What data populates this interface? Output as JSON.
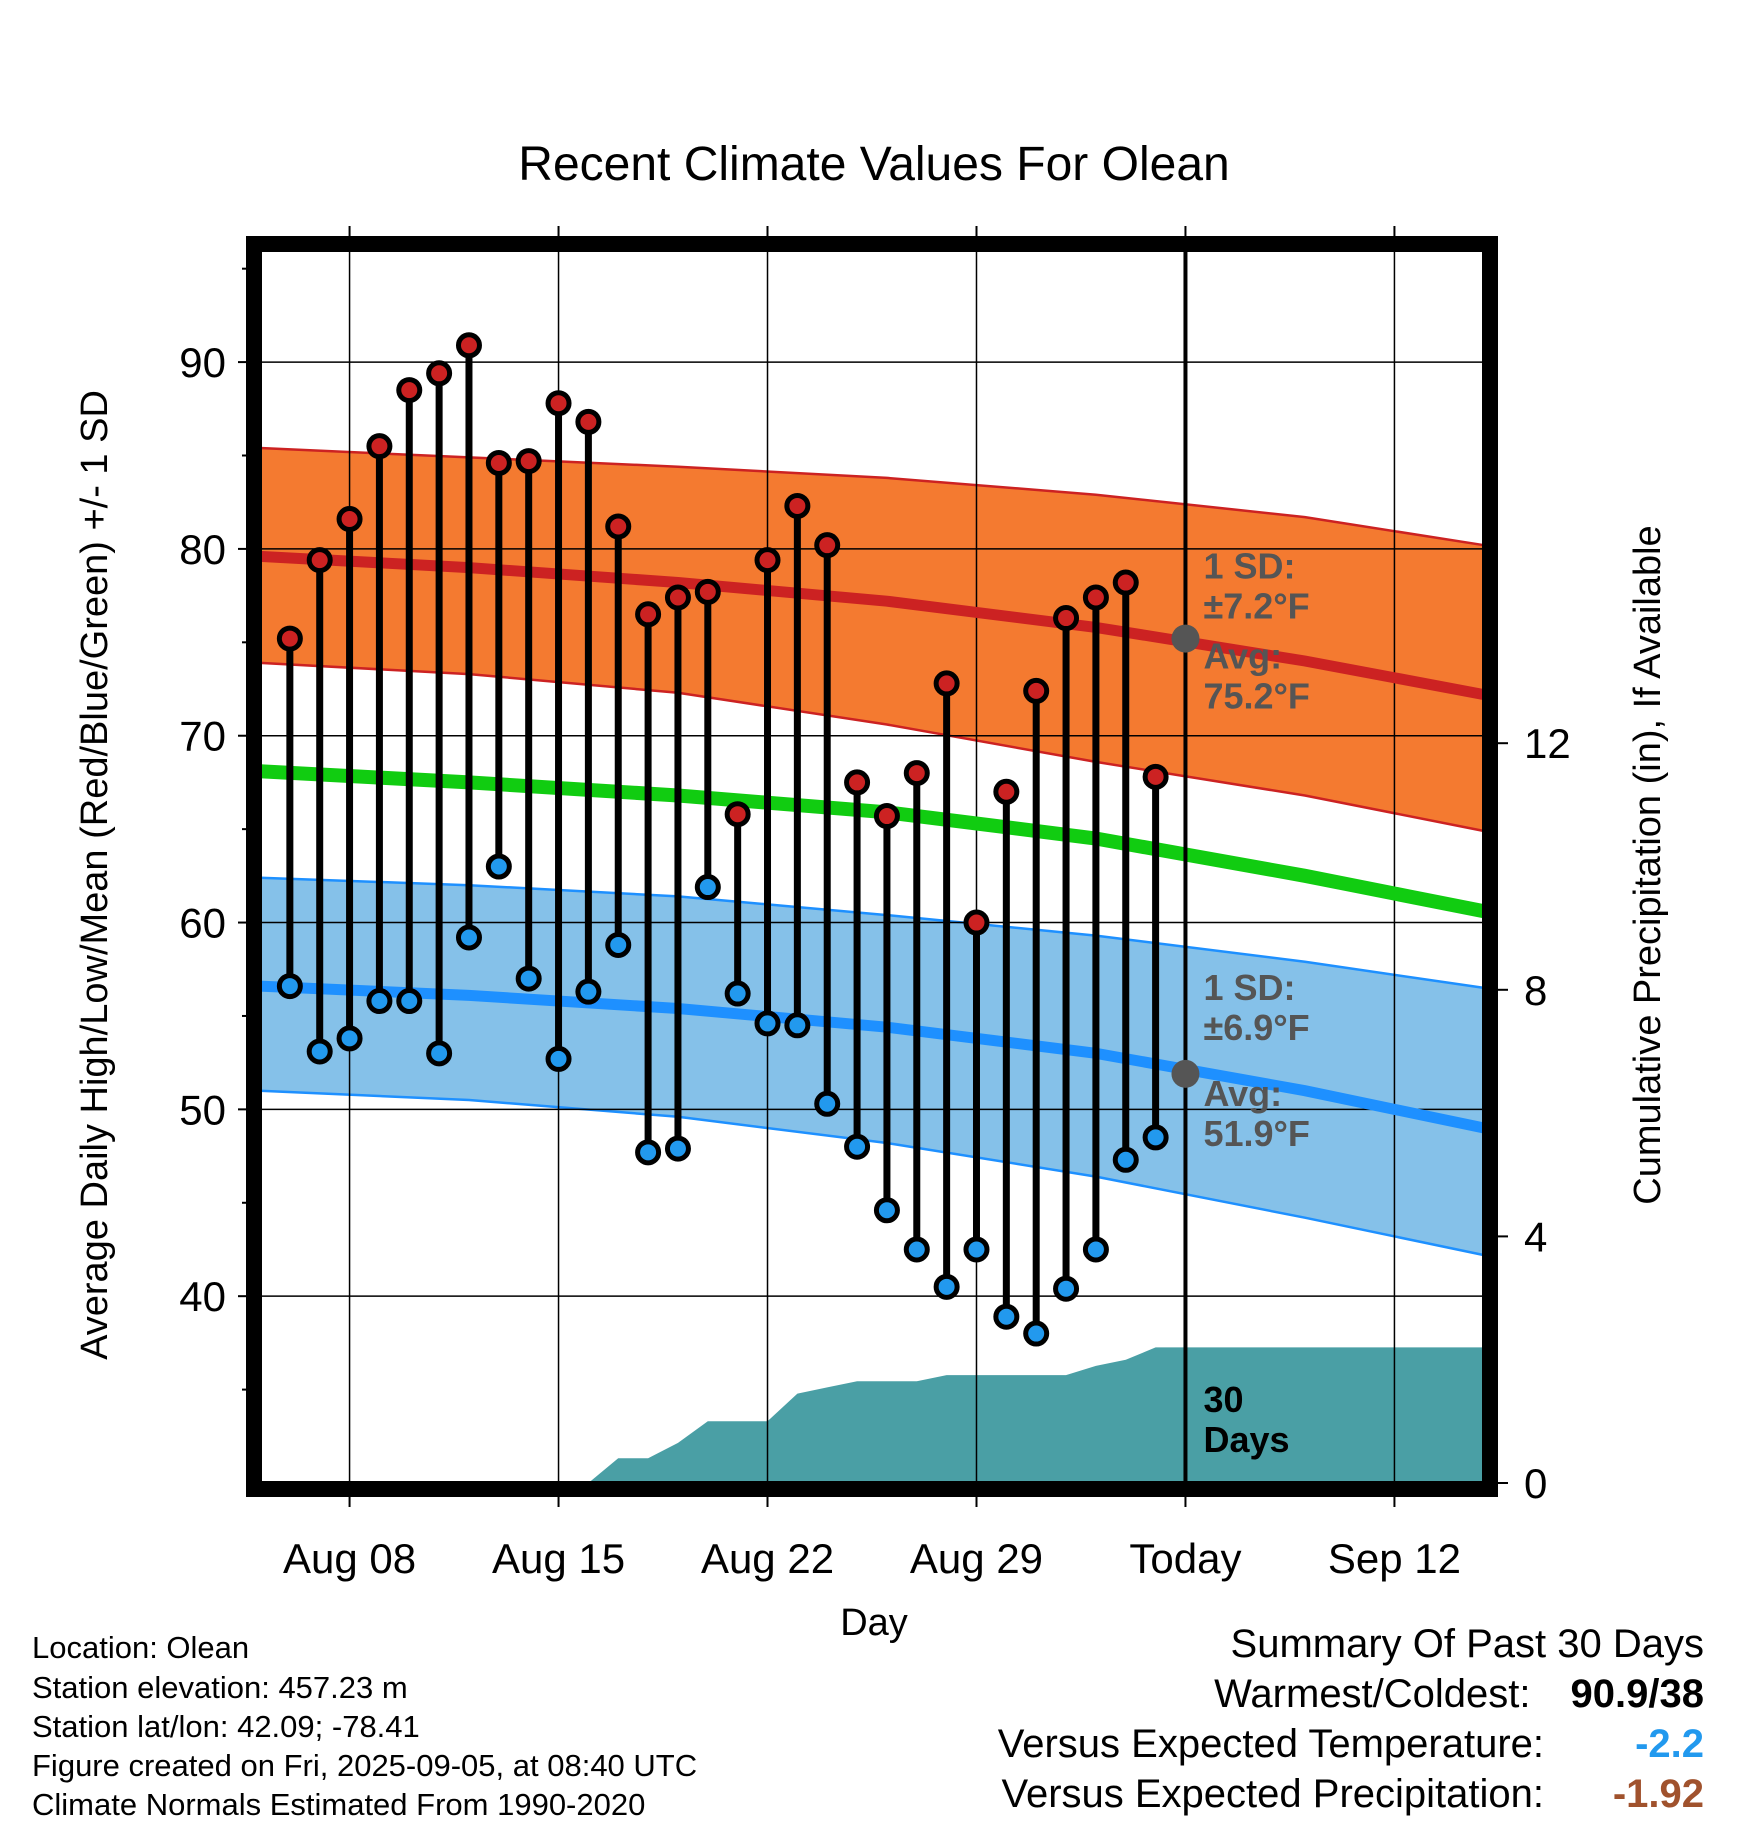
{
  "chart_data": {
    "type": "line",
    "title": "Recent Climate Values For Olean",
    "xlabel": "Day",
    "ylabel": "Average Daily High/Low/Mean (Red/Blue/Green) +/- 1 SD",
    "y2label": "Cumulative Precipitation (in), If Available",
    "ylim": [
      30,
      96
    ],
    "y2lim": [
      0,
      20
    ],
    "yticks": [
      40,
      50,
      60,
      70,
      80,
      90
    ],
    "y2ticks": [
      0,
      4,
      8,
      12
    ],
    "x_range": [
      "Aug 05",
      "Sep 15"
    ],
    "xtick_labels": [
      "Aug 08",
      "Aug 15",
      "Aug 22",
      "Aug 29",
      "Today",
      "Sep 12"
    ],
    "today": "Sep 05",
    "grid": true,
    "observed_days": [
      "Aug 06",
      "Aug 07",
      "Aug 08",
      "Aug 09",
      "Aug 10",
      "Aug 11",
      "Aug 12",
      "Aug 13",
      "Aug 14",
      "Aug 15",
      "Aug 16",
      "Aug 17",
      "Aug 18",
      "Aug 19",
      "Aug 20",
      "Aug 21",
      "Aug 22",
      "Aug 23",
      "Aug 24",
      "Aug 25",
      "Aug 26",
      "Aug 27",
      "Aug 28",
      "Aug 29",
      "Aug 30",
      "Aug 31",
      "Sep 01",
      "Sep 02",
      "Sep 03",
      "Sep 04"
    ],
    "series": [
      {
        "name": "Daily High",
        "color": "#cc2222",
        "values": [
          75.2,
          79.4,
          81.6,
          85.5,
          88.5,
          89.4,
          90.9,
          84.6,
          84.7,
          87.8,
          86.8,
          81.2,
          76.5,
          77.4,
          77.7,
          65.8,
          79.4,
          82.3,
          80.2,
          67.5,
          65.7,
          68.0,
          72.8,
          60.0,
          67.0,
          72.4,
          76.3,
          77.4,
          78.2,
          67.8
        ]
      },
      {
        "name": "Daily Low",
        "color": "#2299ee",
        "values": [
          56.6,
          53.1,
          53.8,
          55.8,
          55.8,
          53.0,
          59.2,
          63.0,
          57.0,
          52.7,
          56.3,
          58.8,
          47.7,
          47.9,
          61.9,
          56.2,
          54.6,
          54.5,
          50.3,
          48.0,
          44.6,
          42.5,
          40.5,
          42.5,
          38.9,
          38.0,
          40.4,
          42.5,
          47.3,
          48.5
        ]
      }
    ],
    "normals": {
      "x_days": [
        "Aug 05",
        "Aug 12",
        "Aug 19",
        "Aug 26",
        "Sep 02",
        "Sep 09",
        "Sep 15"
      ],
      "avg_high": [
        79.6,
        79.0,
        78.2,
        77.2,
        75.8,
        74.0,
        72.2
      ],
      "avg_high_upper": [
        85.4,
        84.9,
        84.4,
        83.8,
        82.9,
        81.7,
        80.2
      ],
      "avg_high_lower": [
        73.9,
        73.3,
        72.3,
        70.6,
        68.6,
        66.8,
        64.9
      ],
      "avg_low": [
        56.6,
        56.1,
        55.4,
        54.4,
        53.0,
        51.0,
        49.0
      ],
      "avg_low_upper": [
        62.4,
        62.0,
        61.4,
        60.4,
        59.3,
        57.9,
        56.5
      ],
      "avg_low_lower": [
        51.0,
        50.5,
        49.6,
        48.2,
        46.4,
        44.2,
        42.2
      ],
      "avg_mean": [
        68.1,
        67.5,
        66.8,
        65.9,
        64.5,
        62.5,
        60.6
      ],
      "colors": {
        "high_band": "#f47a30",
        "high_line": "#cc2222",
        "low_band": "#85c1e9",
        "low_line": "#1e90ff",
        "mean_line": "#11cc11"
      }
    },
    "precipitation": {
      "color": "#4a9fa5",
      "x_days": [
        "Aug 16",
        "Aug 17",
        "Aug 18",
        "Aug 19",
        "Aug 20",
        "Aug 21",
        "Aug 22",
        "Aug 23",
        "Aug 24",
        "Aug 25",
        "Aug 26",
        "Aug 27",
        "Aug 28",
        "Aug 29",
        "Aug 30",
        "Aug 31",
        "Sep 01",
        "Sep 02",
        "Sep 03",
        "Sep 04",
        "Sep 15"
      ],
      "values": [
        0.0,
        0.4,
        0.4,
        0.65,
        1.0,
        1.0,
        1.0,
        1.45,
        1.55,
        1.65,
        1.65,
        1.65,
        1.75,
        1.75,
        1.75,
        1.75,
        1.75,
        1.9,
        2.0,
        2.2,
        2.2
      ]
    },
    "annotations": {
      "high_sd_label": "1 SD:",
      "high_sd_value": "±7.2°F",
      "high_avg_label": "Avg:",
      "high_avg_value": "75.2°F",
      "low_sd_label": "1 SD:",
      "low_sd_value": "±6.9°F",
      "low_avg_label": "Avg:",
      "low_avg_value": "51.9°F",
      "today_high": 75.2,
      "today_low": 51.9,
      "days_line1": "30",
      "days_line2": "Days"
    }
  },
  "footer": {
    "location": "Location: Olean",
    "elevation": "Station elevation: 457.23 m",
    "latlon": "Station lat/lon: 42.09; -78.41",
    "created": "Figure created on Fri, 2025-09-05, at 08:40 UTC",
    "normals": "Climate Normals Estimated From 1990-2020"
  },
  "summary": {
    "title": "Summary Of Past 30 Days",
    "warm_cold_label": "Warmest/Coldest:",
    "warm_cold_value": "90.9/38",
    "temp_label": "Versus Expected Temperature:",
    "temp_value": "-2.2",
    "temp_color": "#2299ee",
    "precip_label": "Versus Expected Precipitation:",
    "precip_value": "-1.92",
    "precip_color": "#a0522d"
  }
}
